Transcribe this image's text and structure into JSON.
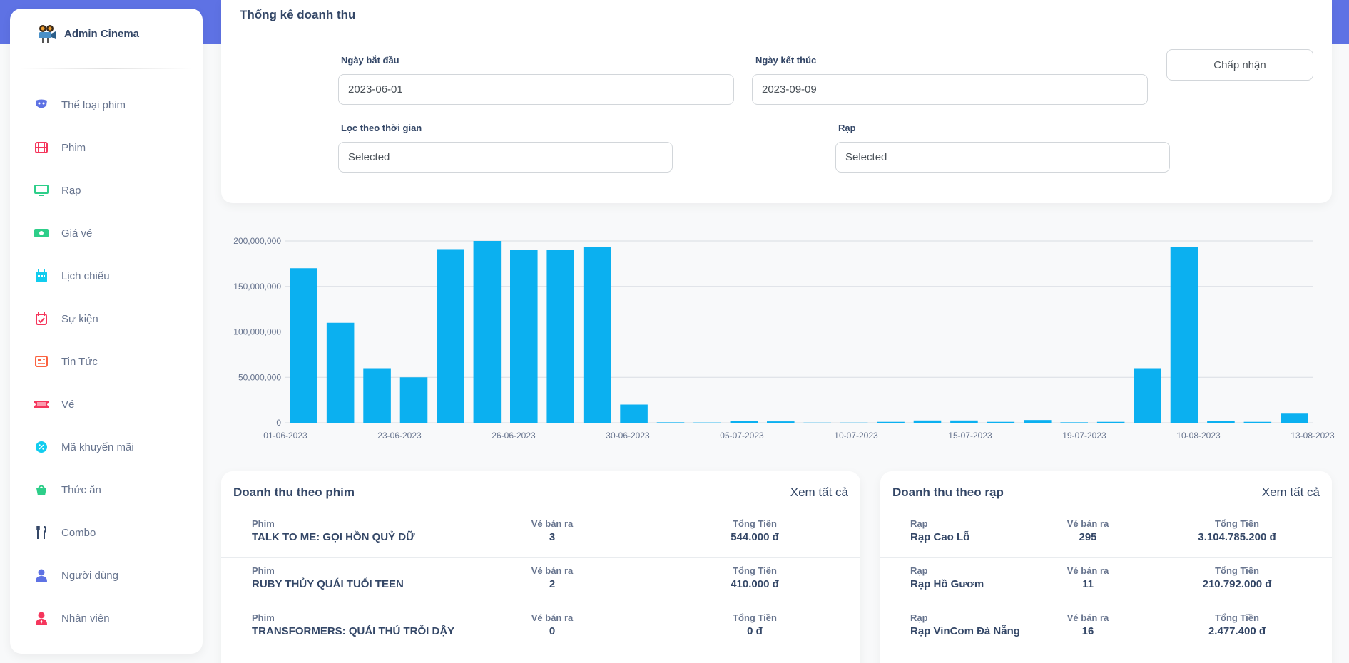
{
  "brand": {
    "name": "Admin Cinema"
  },
  "sidebar": {
    "items": [
      {
        "label": "Thể loại phim",
        "icon": "masks-icon",
        "color": "#5e72e4"
      },
      {
        "label": "Phim",
        "icon": "film-icon",
        "color": "#f5365c"
      },
      {
        "label": "Rạp",
        "icon": "monitor-icon",
        "color": "#2dce89"
      },
      {
        "label": "Giá vé",
        "icon": "money-icon",
        "color": "#2dce89"
      },
      {
        "label": "Lịch chiếu",
        "icon": "calendar-icon",
        "color": "#11cdef"
      },
      {
        "label": "Sự kiện",
        "icon": "calendar-check-icon",
        "color": "#f5365c"
      },
      {
        "label": "Tin Tức",
        "icon": "newspaper-icon",
        "color": "#fb6340"
      },
      {
        "label": "Vé",
        "icon": "ticket-icon",
        "color": "#f5365c"
      },
      {
        "label": "Mã khuyến mãi",
        "icon": "badge-percent-icon",
        "color": "#11cdef"
      },
      {
        "label": "Thức ăn",
        "icon": "basket-icon",
        "color": "#2dce89"
      },
      {
        "label": "Combo",
        "icon": "utensils-icon",
        "color": "#344767"
      },
      {
        "label": "Người dùng",
        "icon": "user-icon",
        "color": "#5e72e4"
      },
      {
        "label": "Nhân viên",
        "icon": "user-tie-icon",
        "color": "#f5365c"
      }
    ]
  },
  "filters": {
    "title": "Thống kê doanh thu",
    "start_label": "Ngày bắt đầu",
    "start_value": "2023-06-01",
    "end_label": "Ngày kết thúc",
    "end_value": "2023-09-09",
    "accept_label": "Chấp nhận",
    "time_filter_label": "Lọc theo thời gian",
    "time_filter_value": "Selected",
    "cinema_label": "Rạp",
    "cinema_value": "Selected"
  },
  "chart_data": {
    "type": "bar",
    "color": "#0bb0f0",
    "ylim": [
      0,
      200000000
    ],
    "yticks": [
      "0",
      "50,000,000",
      "100,000,000",
      "150,000,000",
      "200,000,000"
    ],
    "xtick_labels": [
      "01-06-2023",
      "23-06-2023",
      "26-06-2023",
      "30-06-2023",
      "05-07-2023",
      "10-07-2023",
      "15-07-2023",
      "19-07-2023",
      "10-08-2023",
      "13-08-2023"
    ],
    "values": [
      170000000,
      110000000,
      60000000,
      50000000,
      191000000,
      200000000,
      190000000,
      190000000,
      193000000,
      20000000,
      500000,
      300000,
      2000000,
      1500000,
      200000,
      200000,
      1000000,
      2500000,
      2500000,
      1000000,
      3000000,
      500000,
      1000000,
      60000000,
      193000000,
      2000000,
      1000000,
      10000000
    ]
  },
  "movie_table": {
    "title": "Doanh thu theo phim",
    "link": "Xem tất cả",
    "rows": [
      {
        "h1": "Phim",
        "v1": "TALK TO ME: GỌI HỒN QUỶ DỮ",
        "h2": "Vé bán ra",
        "v2": "3",
        "h3": "Tổng Tiền",
        "v3": "544.000 đ"
      },
      {
        "h1": "Phim",
        "v1": "RUBY THỦY QUÁI TUỔI TEEN",
        "h2": "Vé bán ra",
        "v2": "2",
        "h3": "Tổng Tiền",
        "v3": "410.000 đ"
      },
      {
        "h1": "Phim",
        "v1": "TRANSFORMERS: QUÁI THÚ TRỖI DẬY",
        "h2": "Vé bán ra",
        "v2": "0",
        "h3": "Tổng Tiền",
        "v3": "0 đ"
      }
    ]
  },
  "cinema_table": {
    "title": "Doanh thu theo rạp",
    "link": "Xem tất cả",
    "rows": [
      {
        "h1": "Rạp",
        "v1": "Rạp Cao Lỗ",
        "h2": "Vé bán ra",
        "v2": "295",
        "h3": "Tổng Tiền",
        "v3": "3.104.785.200 đ"
      },
      {
        "h1": "Rạp",
        "v1": "Rạp Hồ Gươm",
        "h2": "Vé bán ra",
        "v2": "11",
        "h3": "Tổng Tiền",
        "v3": "210.792.000 đ"
      },
      {
        "h1": "Rạp",
        "v1": "Rạp VinCom Đà Nẵng",
        "h2": "Vé bán ra",
        "v2": "16",
        "h3": "Tổng Tiền",
        "v3": "2.477.400 đ"
      }
    ]
  }
}
